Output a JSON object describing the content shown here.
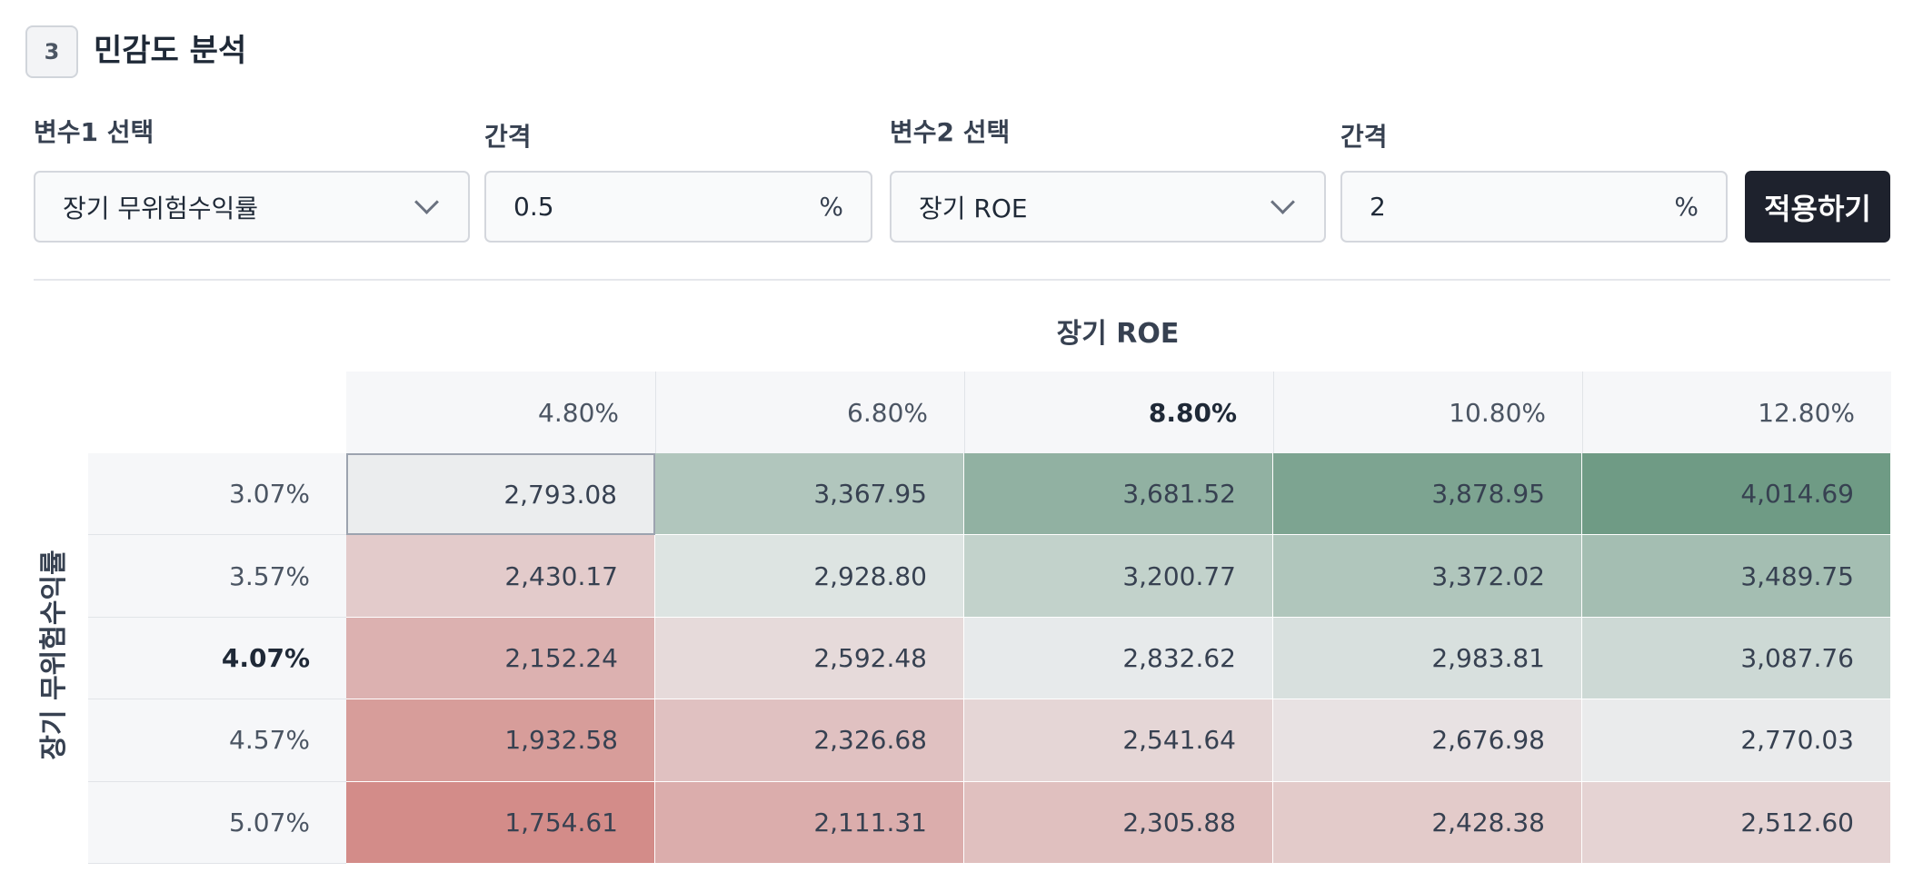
{
  "section": {
    "step": "3",
    "title": "민감도 분석"
  },
  "controls": {
    "var1_label": "변수1 선택",
    "var1_value": "장기 무위험수익률",
    "step1_label": "간격",
    "step1_value": "0.5",
    "step1_unit": "%",
    "var2_label": "변수2 선택",
    "var2_value": "장기 ROE",
    "step2_label": "간격",
    "step2_value": "2",
    "step2_unit": "%",
    "apply_label": "적용하기"
  },
  "table": {
    "col_title": "장기 ROE",
    "row_title": "장기 무위험수익률",
    "columns": [
      "4.80%",
      "6.80%",
      "8.80%",
      "10.80%",
      "12.80%"
    ],
    "rows": [
      {
        "label": "3.07%",
        "values": [
          "2,793.08",
          "3,367.95",
          "3,681.52",
          "3,878.95",
          "4,014.69"
        ]
      },
      {
        "label": "3.57%",
        "values": [
          "2,430.17",
          "2,928.80",
          "3,200.77",
          "3,372.02",
          "3,489.75"
        ]
      },
      {
        "label": "4.07%",
        "values": [
          "2,152.24",
          "2,592.48",
          "2,832.62",
          "2,983.81",
          "3,087.76"
        ]
      },
      {
        "label": "4.57%",
        "values": [
          "1,932.58",
          "2,326.68",
          "2,541.64",
          "2,676.98",
          "2,770.03"
        ]
      },
      {
        "label": "5.07%",
        "values": [
          "1,754.61",
          "2,111.31",
          "2,305.88",
          "2,428.38",
          "2,512.60"
        ]
      }
    ],
    "highlight_column": 2,
    "highlight_row": 2,
    "base_cell": [
      0,
      0
    ],
    "colors": {
      "neutral": "#ebedee",
      "positive": "#6f9b85",
      "negative": "#cf7b77"
    }
  }
}
